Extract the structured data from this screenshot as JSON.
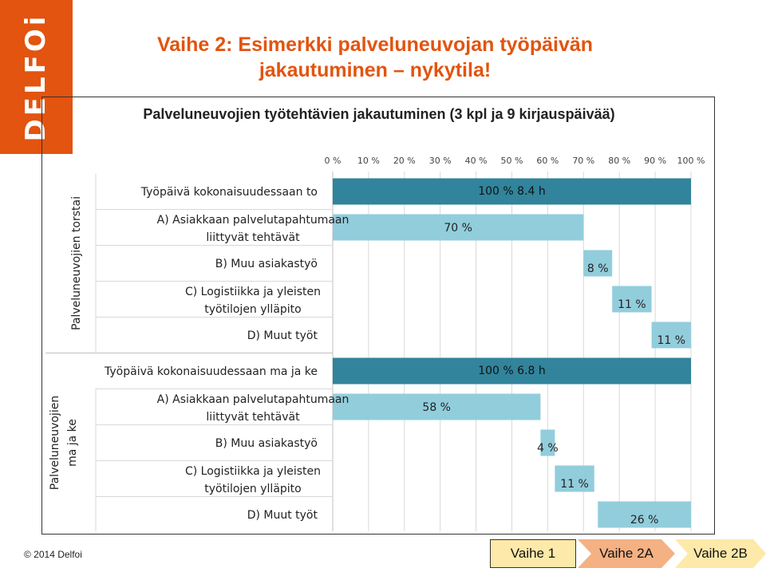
{
  "logo": "DELFOi",
  "slide": {
    "title": "Vaihe 2: Esimerkki palveluneuvojan  työpäivän jakautuminen – nykytila!"
  },
  "footer": {
    "copyright": "© 2014 Delfoi",
    "steps": [
      {
        "label": "Vaihe 1",
        "active": false
      },
      {
        "label": "Vaihe 2A",
        "active": true
      },
      {
        "label": "Vaihe 2B",
        "active": false
      }
    ]
  },
  "colors": {
    "brand": "#e2540f",
    "total_bar": "#31849b",
    "part_bar": "#92cddc",
    "grid": "#d9d9d9"
  },
  "chart_data": {
    "type": "bar",
    "orientation": "horizontal",
    "stacked": false,
    "title": "Palveluneuvojien työtehtävien jakautuminen (3 kpl ja 9 kirjauspäivää)",
    "xlim": [
      0,
      100
    ],
    "x_ticks": [
      "0 %",
      "10 %",
      "20 %",
      "30 %",
      "40 %",
      "50 %",
      "60 %",
      "70 %",
      "80 %",
      "90 %",
      "100 %"
    ],
    "x_axis_position": "top",
    "grid": true,
    "groups": [
      {
        "label": "Palveluneuvojien torstai",
        "rows": [
          {
            "label": "Työpäivä kokonaisuudessaan to",
            "offset": 0,
            "value": 100,
            "data_label": "100 % 8.4 h",
            "kind": "total"
          },
          {
            "label": "A) Asiakkaan palvelutapahtumaan liittyvät tehtävät",
            "offset": 0,
            "value": 70,
            "data_label": "70 %",
            "kind": "part"
          },
          {
            "label": "B) Muu asiakastyö",
            "offset": 70,
            "value": 8,
            "data_label": "8 %",
            "kind": "part"
          },
          {
            "label": "C) Logistiikka ja yleisten työtilojen ylläpito",
            "offset": 78,
            "value": 11,
            "data_label": "11 %",
            "kind": "part"
          },
          {
            "label": "D) Muut työt",
            "offset": 89,
            "value": 11,
            "data_label": "11 %",
            "kind": "part"
          }
        ]
      },
      {
        "label": "Palveluneuvojien ma ja ke",
        "rows": [
          {
            "label": "Työpäivä kokonaisuudessaan  ma ja ke",
            "offset": 0,
            "value": 100,
            "data_label": "100 % 6.8 h",
            "kind": "total"
          },
          {
            "label": "A) Asiakkaan palvelutapahtumaan liittyvät tehtävät",
            "offset": 0,
            "value": 58,
            "data_label": "58 %",
            "kind": "part"
          },
          {
            "label": "B) Muu asiakastyö",
            "offset": 58,
            "value": 4,
            "data_label": "4 %",
            "kind": "part"
          },
          {
            "label": "C) Logistiikka ja yleisten työtilojen ylläpito",
            "offset": 62,
            "value": 11,
            "data_label": "11 %",
            "kind": "part"
          },
          {
            "label": "D) Muut työt",
            "offset": 74,
            "value": 26,
            "data_label": "26 %",
            "kind": "part"
          }
        ]
      }
    ]
  }
}
